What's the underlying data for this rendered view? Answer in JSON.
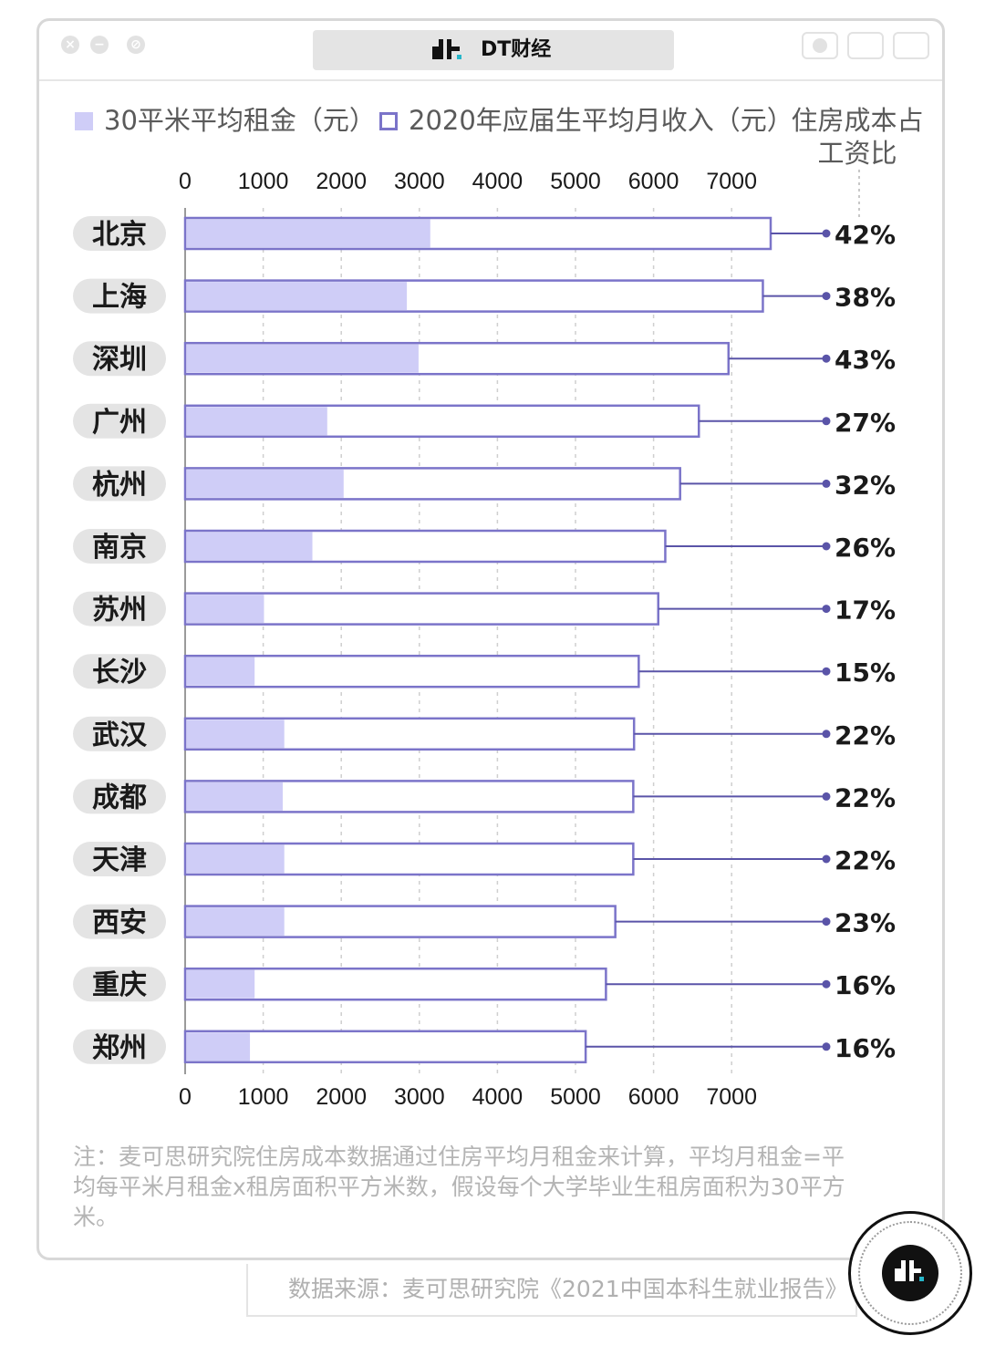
{
  "window": {
    "title": "DT财经"
  },
  "legend": {
    "rent_label": "30平米平均租金（元）",
    "income_label": "2020年应届生平均月收入（元）",
    "ratio_header_line1": "住房成本占",
    "ratio_header_line2": "工资比"
  },
  "colors": {
    "rent_fill": "#cfcdf7",
    "bar_border": "#7b74c9",
    "connector": "#5a54a8",
    "grid": "#cfcfcf"
  },
  "chart_data": {
    "type": "bar",
    "orientation": "horizontal",
    "xlim": [
      0,
      7500
    ],
    "x_ticks": [
      0,
      1000,
      2000,
      3000,
      4000,
      5000,
      6000,
      7000
    ],
    "grid": true,
    "categories": [
      "北京",
      "上海",
      "深圳",
      "广州",
      "杭州",
      "南京",
      "苏州",
      "长沙",
      "武汉",
      "成都",
      "天津",
      "西安",
      "重庆",
      "郑州"
    ],
    "series": [
      {
        "name": "30平米平均租金（元）",
        "values": [
          3140,
          2840,
          2990,
          1820,
          2030,
          1630,
          1010,
          890,
          1270,
          1250,
          1270,
          1270,
          890,
          830
        ]
      },
      {
        "name": "2020年应届生平均月收入（元）",
        "values": [
          7500,
          7400,
          6960,
          6580,
          6340,
          6150,
          6060,
          5810,
          5750,
          5740,
          5740,
          5510,
          5390,
          5130
        ]
      }
    ],
    "ratio_labels": [
      "42%",
      "38%",
      "43%",
      "27%",
      "32%",
      "26%",
      "17%",
      "15%",
      "22%",
      "22%",
      "22%",
      "23%",
      "16%",
      "16%"
    ]
  },
  "note": "注：麦可思研究院住房成本数据通过住房平均月租金来计算，平均月租金=平均每平米月租金x租房面积平方米数，假设每个大学毕业生租房面积为30平方米。",
  "source": "数据来源：麦可思研究院《2021中国本科生就业报告》"
}
